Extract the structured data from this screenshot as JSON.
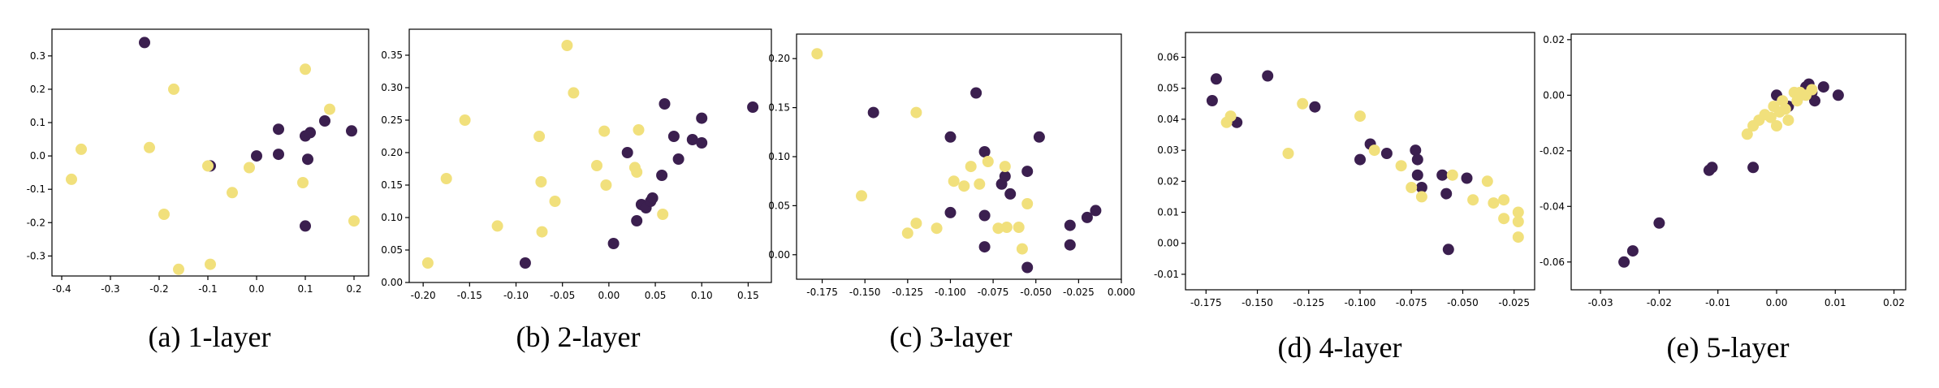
{
  "colors": {
    "class0": "#3b1f4f",
    "class1": "#f1e07c",
    "axis": "#000000"
  },
  "chart_data": [
    {
      "type": "scatter",
      "caption": "(a) 1-layer",
      "xlim": [
        -0.42,
        0.23
      ],
      "ylim": [
        -0.36,
        0.38
      ],
      "xticks": [
        -0.4,
        -0.3,
        -0.2,
        -0.1,
        0.0,
        0.1,
        0.2
      ],
      "xtick_labels": [
        "-0.4",
        "-0.3",
        "-0.2",
        "-0.1",
        "0.0",
        "0.1",
        "0.2"
      ],
      "yticks": [
        -0.3,
        -0.2,
        -0.1,
        0.0,
        0.1,
        0.2,
        0.3
      ],
      "ytick_labels": [
        "-0.3",
        "-0.2",
        "-0.1",
        "0.0",
        "0.1",
        "0.2",
        "0.3"
      ],
      "series": [
        {
          "color_key": "class0",
          "points": [
            [
              -0.23,
              0.34
            ],
            [
              0.0,
              0.0
            ],
            [
              0.045,
              0.08
            ],
            [
              0.045,
              0.005
            ],
            [
              0.1,
              0.06
            ],
            [
              0.11,
              0.07
            ],
            [
              0.105,
              -0.01
            ],
            [
              0.14,
              0.105
            ],
            [
              0.195,
              0.075
            ],
            [
              0.1,
              -0.21
            ],
            [
              -0.095,
              -0.03
            ]
          ]
        },
        {
          "color_key": "class1",
          "points": [
            [
              -0.38,
              -0.07
            ],
            [
              -0.36,
              0.02
            ],
            [
              -0.22,
              0.025
            ],
            [
              -0.19,
              -0.175
            ],
            [
              -0.17,
              0.2
            ],
            [
              -0.16,
              -0.34
            ],
            [
              -0.1,
              -0.03
            ],
            [
              -0.095,
              -0.325
            ],
            [
              -0.05,
              -0.11
            ],
            [
              -0.015,
              -0.035
            ],
            [
              0.1,
              0.26
            ],
            [
              0.095,
              -0.08
            ],
            [
              0.15,
              0.14
            ],
            [
              0.2,
              -0.195
            ]
          ]
        }
      ]
    },
    {
      "type": "scatter",
      "caption": "(b) 2-layer",
      "xlim": [
        -0.215,
        0.175
      ],
      "ylim": [
        0.0,
        0.39
      ],
      "xticks": [
        -0.2,
        -0.15,
        -0.1,
        -0.05,
        0.0,
        0.05,
        0.1,
        0.15
      ],
      "xtick_labels": [
        "-0.20",
        "-0.15",
        "-0.10",
        "-0.05",
        "0.00",
        "0.05",
        "0.10",
        "0.15"
      ],
      "yticks": [
        0.0,
        0.05,
        0.1,
        0.15,
        0.2,
        0.25,
        0.3,
        0.35
      ],
      "ytick_labels": [
        "0.00",
        "0.05",
        "0.10",
        "0.15",
        "0.20",
        "0.25",
        "0.30",
        "0.35"
      ],
      "series": [
        {
          "color_key": "class0",
          "points": [
            [
              -0.09,
              0.03
            ],
            [
              0.005,
              0.06
            ],
            [
              0.02,
              0.2
            ],
            [
              0.03,
              0.095
            ],
            [
              0.035,
              0.12
            ],
            [
              0.04,
              0.115
            ],
            [
              0.045,
              0.125
            ],
            [
              0.047,
              0.13
            ],
            [
              0.057,
              0.165
            ],
            [
              0.06,
              0.275
            ],
            [
              0.07,
              0.225
            ],
            [
              0.075,
              0.19
            ],
            [
              0.09,
              0.22
            ],
            [
              0.1,
              0.215
            ],
            [
              0.1,
              0.253
            ],
            [
              0.155,
              0.27
            ]
          ]
        },
        {
          "color_key": "class1",
          "points": [
            [
              -0.195,
              0.03
            ],
            [
              -0.175,
              0.16
            ],
            [
              -0.155,
              0.25
            ],
            [
              -0.12,
              0.087
            ],
            [
              -0.075,
              0.225
            ],
            [
              -0.073,
              0.155
            ],
            [
              -0.072,
              0.078
            ],
            [
              -0.058,
              0.125
            ],
            [
              -0.045,
              0.365
            ],
            [
              -0.038,
              0.292
            ],
            [
              -0.013,
              0.18
            ],
            [
              -0.005,
              0.233
            ],
            [
              -0.003,
              0.15
            ],
            [
              0.028,
              0.177
            ],
            [
              0.032,
              0.235
            ],
            [
              0.058,
              0.105
            ],
            [
              0.03,
              0.17
            ]
          ]
        }
      ]
    },
    {
      "type": "scatter",
      "caption": "(c) 3-layer",
      "xlim": [
        -0.19,
        0.0
      ],
      "ylim": [
        -0.025,
        0.225
      ],
      "xticks": [
        -0.175,
        -0.15,
        -0.125,
        -0.1,
        -0.075,
        -0.05,
        -0.025,
        0.0
      ],
      "xtick_labels": [
        "-0.175",
        "-0.150",
        "-0.125",
        "-0.100",
        "-0.075",
        "-0.050",
        "-0.025",
        "0.000"
      ],
      "yticks": [
        0.0,
        0.05,
        0.1,
        0.15,
        0.2
      ],
      "ytick_labels": [
        "0.00",
        "0.05",
        "0.10",
        "0.15",
        "0.20"
      ],
      "series": [
        {
          "color_key": "class0",
          "points": [
            [
              -0.145,
              0.145
            ],
            [
              -0.1,
              0.12
            ],
            [
              -0.1,
              0.043
            ],
            [
              -0.085,
              0.165
            ],
            [
              -0.08,
              0.105
            ],
            [
              -0.08,
              0.04
            ],
            [
              -0.08,
              0.008
            ],
            [
              -0.07,
              0.072
            ],
            [
              -0.068,
              0.08
            ],
            [
              -0.065,
              0.062
            ],
            [
              -0.055,
              0.085
            ],
            [
              -0.055,
              -0.013
            ],
            [
              -0.048,
              0.12
            ],
            [
              -0.03,
              0.03
            ],
            [
              -0.03,
              0.01
            ],
            [
              -0.02,
              0.038
            ],
            [
              -0.015,
              0.045
            ]
          ]
        },
        {
          "color_key": "class1",
          "points": [
            [
              -0.178,
              0.205
            ],
            [
              -0.152,
              0.06
            ],
            [
              -0.125,
              0.022
            ],
            [
              -0.12,
              0.145
            ],
            [
              -0.12,
              0.032
            ],
            [
              -0.108,
              0.027
            ],
            [
              -0.098,
              0.075
            ],
            [
              -0.092,
              0.07
            ],
            [
              -0.088,
              0.09
            ],
            [
              -0.083,
              0.072
            ],
            [
              -0.078,
              0.095
            ],
            [
              -0.072,
              0.027
            ],
            [
              -0.068,
              0.09
            ],
            [
              -0.067,
              0.028
            ],
            [
              -0.06,
              0.028
            ],
            [
              -0.058,
              0.006
            ],
            [
              -0.055,
              0.052
            ]
          ]
        }
      ]
    },
    {
      "type": "scatter",
      "caption": "(d) 4-layer",
      "xlim": [
        -0.185,
        -0.015
      ],
      "ylim": [
        -0.015,
        0.068
      ],
      "xticks": [
        -0.175,
        -0.15,
        -0.125,
        -0.1,
        -0.075,
        -0.05,
        -0.025
      ],
      "xtick_labels": [
        "-0.175",
        "-0.150",
        "-0.125",
        "-0.100",
        "-0.075",
        "-0.050",
        "-0.025"
      ],
      "yticks": [
        -0.01,
        0.0,
        0.01,
        0.02,
        0.03,
        0.04,
        0.05,
        0.06
      ],
      "ytick_labels": [
        "-0.01",
        "0.00",
        "0.01",
        "0.02",
        "0.03",
        "0.04",
        "0.05",
        "0.06"
      ],
      "series": [
        {
          "color_key": "class0",
          "points": [
            [
              -0.17,
              0.053
            ],
            [
              -0.172,
              0.046
            ],
            [
              -0.16,
              0.039
            ],
            [
              -0.145,
              0.054
            ],
            [
              -0.122,
              0.044
            ],
            [
              -0.1,
              0.027
            ],
            [
              -0.095,
              0.032
            ],
            [
              -0.087,
              0.029
            ],
            [
              -0.073,
              0.03
            ],
            [
              -0.072,
              0.027
            ],
            [
              -0.072,
              0.022
            ],
            [
              -0.07,
              0.018
            ],
            [
              -0.06,
              0.022
            ],
            [
              -0.058,
              0.016
            ],
            [
              -0.057,
              -0.002
            ],
            [
              -0.048,
              0.021
            ]
          ]
        },
        {
          "color_key": "class1",
          "points": [
            [
              -0.165,
              0.039
            ],
            [
              -0.163,
              0.041
            ],
            [
              -0.135,
              0.029
            ],
            [
              -0.128,
              0.045
            ],
            [
              -0.1,
              0.041
            ],
            [
              -0.093,
              0.03
            ],
            [
              -0.08,
              0.025
            ],
            [
              -0.075,
              0.018
            ],
            [
              -0.07,
              0.015
            ],
            [
              -0.055,
              0.022
            ],
            [
              -0.045,
              0.014
            ],
            [
              -0.038,
              0.02
            ],
            [
              -0.035,
              0.013
            ],
            [
              -0.03,
              0.014
            ],
            [
              -0.03,
              0.008
            ],
            [
              -0.023,
              0.01
            ],
            [
              -0.023,
              0.007
            ],
            [
              -0.023,
              0.002
            ]
          ]
        }
      ]
    },
    {
      "type": "scatter",
      "caption": "(e) 5-layer",
      "xlim": [
        -0.035,
        0.022
      ],
      "ylim": [
        -0.07,
        0.022
      ],
      "xticks": [
        -0.03,
        -0.02,
        -0.01,
        0.0,
        0.01,
        0.02
      ],
      "xtick_labels": [
        "-0.03",
        "-0.02",
        "-0.01",
        "0.00",
        "0.01",
        "0.02"
      ],
      "yticks": [
        -0.06,
        -0.04,
        -0.02,
        0.0,
        0.02
      ],
      "ytick_labels": [
        "-0.06",
        "-0.04",
        "-0.02",
        "0.00",
        "0.02"
      ],
      "series": [
        {
          "color_key": "class0",
          "points": [
            [
              -0.026,
              -0.06
            ],
            [
              -0.0245,
              -0.056
            ],
            [
              -0.02,
              -0.046
            ],
            [
              -0.0115,
              -0.027
            ],
            [
              -0.011,
              -0.026
            ],
            [
              -0.004,
              -0.026
            ],
            [
              0.0,
              0.0
            ],
            [
              0.002,
              -0.004
            ],
            [
              0.004,
              0.0
            ],
            [
              0.005,
              0.003
            ],
            [
              0.0055,
              0.004
            ],
            [
              0.006,
              0.001
            ],
            [
              0.0065,
              -0.002
            ],
            [
              0.008,
              0.003
            ],
            [
              0.0105,
              0.0
            ]
          ]
        },
        {
          "color_key": "class1",
          "points": [
            [
              -0.005,
              -0.014
            ],
            [
              -0.004,
              -0.011
            ],
            [
              -0.003,
              -0.009
            ],
            [
              -0.002,
              -0.007
            ],
            [
              -0.001,
              -0.008
            ],
            [
              -0.0005,
              -0.004
            ],
            [
              0.0,
              -0.011
            ],
            [
              0.0005,
              -0.006
            ],
            [
              0.001,
              -0.002
            ],
            [
              0.0015,
              -0.005
            ],
            [
              0.002,
              -0.009
            ],
            [
              0.003,
              0.001
            ],
            [
              0.0035,
              -0.002
            ],
            [
              0.004,
              0.001
            ],
            [
              0.005,
              0.0
            ],
            [
              0.006,
              0.002
            ]
          ]
        }
      ]
    }
  ]
}
